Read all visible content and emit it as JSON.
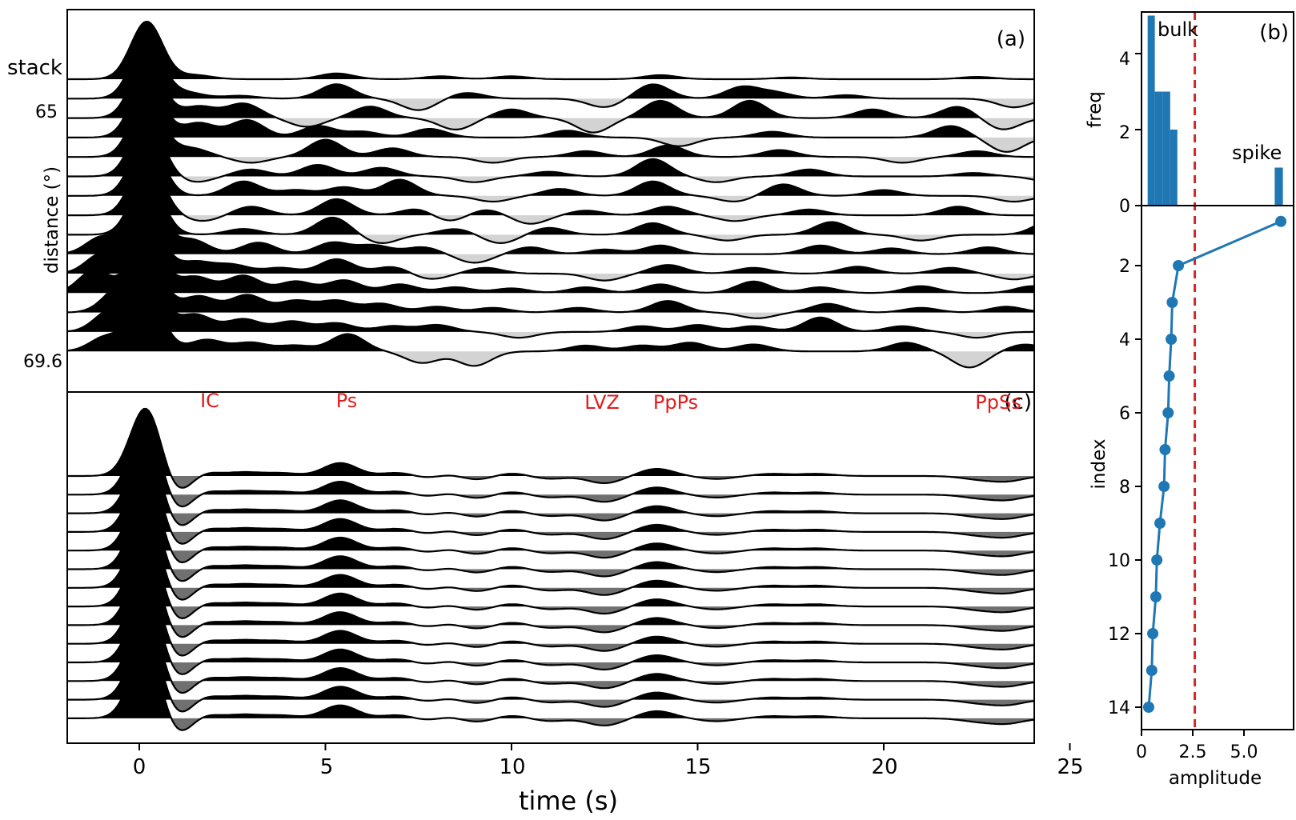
{
  "figure": {
    "colors": {
      "positive_fill": "#000000",
      "negative_fill_a": "#d3d3d3",
      "negative_fill_c": "#707070",
      "trace_line": "#000000",
      "bar": "#1f77b4",
      "marker": "#1f77b4",
      "threshold": "#d62728",
      "phase_label": "#e41a1c"
    }
  },
  "chart_data": [
    {
      "panel": "(a)",
      "type": "line",
      "xlabel": "time (s)",
      "ylabel": "distance (°)",
      "xlim": [
        -2,
        25
      ],
      "x_ticks": [
        0,
        5,
        10,
        15,
        20,
        25
      ],
      "trace_labels": [
        "stack",
        "65",
        "69.6"
      ],
      "trace_count": 15,
      "fill": "positive black, negative light gray",
      "series": [
        {
          "trace": 0,
          "peaks": [
            [
              0.2,
              1.0
            ],
            [
              1.5,
              0.07
            ],
            [
              5.3,
              0.1
            ],
            [
              8.1,
              0.05
            ],
            [
              10,
              0.05
            ],
            [
              14,
              0.07
            ],
            [
              17.5,
              0.03
            ],
            [
              22.5,
              0.04
            ]
          ]
        },
        {
          "trace": 1,
          "peaks": [
            [
              0.2,
              1.0
            ],
            [
              1.3,
              0.1
            ],
            [
              2.7,
              0.05
            ],
            [
              5.3,
              0.25
            ],
            [
              7.5,
              -0.2
            ],
            [
              8.8,
              0.1
            ],
            [
              12.5,
              -0.15
            ],
            [
              13.8,
              0.25
            ],
            [
              16.2,
              0.2
            ],
            [
              17.1,
              0.1
            ],
            [
              19,
              0.06
            ],
            [
              23.5,
              -0.15
            ]
          ]
        },
        {
          "trace": 2,
          "peaks": [
            [
              0.2,
              1.0
            ],
            [
              1.6,
              0.2
            ],
            [
              2.8,
              0.25
            ],
            [
              4.5,
              -0.15
            ],
            [
              6.2,
              0.2
            ],
            [
              8.5,
              -0.2
            ],
            [
              10,
              0.15
            ],
            [
              12.2,
              -0.25
            ],
            [
              14,
              0.3
            ],
            [
              16.4,
              0.3
            ],
            [
              19.7,
              0.15
            ],
            [
              22,
              0.2
            ],
            [
              23.2,
              -0.2
            ]
          ]
        },
        {
          "trace": 3,
          "peaks": [
            [
              0.2,
              1.0
            ],
            [
              1.6,
              0.25
            ],
            [
              2.9,
              0.3
            ],
            [
              4.8,
              0.2
            ],
            [
              6,
              0.1
            ],
            [
              7.8,
              0.15
            ],
            [
              11.5,
              0.12
            ],
            [
              14.5,
              -0.15
            ],
            [
              17,
              0.1
            ],
            [
              21.8,
              0.2
            ],
            [
              23.3,
              -0.25
            ]
          ]
        },
        {
          "trace": 4,
          "peaks": [
            [
              0.2,
              1.0
            ],
            [
              1.4,
              0.15
            ],
            [
              3,
              -0.1
            ],
            [
              5,
              0.3
            ],
            [
              6.8,
              0.15
            ],
            [
              9.5,
              -0.1
            ],
            [
              12,
              0.1
            ],
            [
              14.2,
              0.2
            ],
            [
              17.2,
              0.12
            ],
            [
              20.5,
              -0.1
            ],
            [
              22.5,
              0.1
            ]
          ]
        },
        {
          "trace": 5,
          "peaks": [
            [
              0.2,
              1.0
            ],
            [
              1.5,
              -0.1
            ],
            [
              3,
              0.12
            ],
            [
              4.8,
              0.2
            ],
            [
              6.5,
              0.15
            ],
            [
              9,
              -0.1
            ],
            [
              11,
              0.08
            ],
            [
              13.8,
              0.3
            ],
            [
              15.5,
              -0.1
            ],
            [
              18,
              0.12
            ],
            [
              22.4,
              0.06
            ],
            [
              24.5,
              -0.1
            ]
          ]
        },
        {
          "trace": 6,
          "peaks": [
            [
              0.2,
              1.0
            ],
            [
              2.8,
              0.25
            ],
            [
              4.2,
              0.1
            ],
            [
              5.5,
              0.15
            ],
            [
              7,
              0.28
            ],
            [
              9.5,
              -0.1
            ],
            [
              11.3,
              0.12
            ],
            [
              13.8,
              0.25
            ],
            [
              16,
              -0.1
            ],
            [
              17.3,
              0.2
            ],
            [
              20,
              0.1
            ],
            [
              23.5,
              -0.1
            ]
          ]
        },
        {
          "trace": 7,
          "peaks": [
            [
              0.2,
              1.0
            ],
            [
              1.7,
              -0.1
            ],
            [
              3,
              0.15
            ],
            [
              5.3,
              0.28
            ],
            [
              7.5,
              0.12
            ],
            [
              8.3,
              -0.12
            ],
            [
              9.3,
              0.1
            ],
            [
              10.5,
              -0.15
            ],
            [
              12,
              0.08
            ],
            [
              14.2,
              0.15
            ],
            [
              16,
              -0.1
            ],
            [
              18,
              0.1
            ],
            [
              22,
              0.15
            ]
          ]
        },
        {
          "trace": 8,
          "peaks": [
            [
              0.2,
              1.0
            ],
            [
              2.8,
              0.1
            ],
            [
              5.2,
              0.3
            ],
            [
              6.5,
              -0.15
            ],
            [
              8.5,
              0.1
            ],
            [
              9.7,
              -0.15
            ],
            [
              11,
              0.12
            ],
            [
              13.8,
              0.2
            ],
            [
              15.8,
              -0.1
            ],
            [
              18.6,
              0.22
            ],
            [
              21,
              -0.1
            ],
            [
              24.5,
              0.25
            ]
          ]
        },
        {
          "trace": 9,
          "peaks": [
            [
              -1,
              0.3
            ],
            [
              0.2,
              1.0
            ],
            [
              1.4,
              0.25
            ],
            [
              3.2,
              0.2
            ],
            [
              5.2,
              0.2
            ],
            [
              6.3,
              0.15
            ],
            [
              7.6,
              0.12
            ],
            [
              9,
              -0.15
            ],
            [
              10.5,
              0.12
            ],
            [
              12.5,
              0.08
            ],
            [
              14,
              0.15
            ],
            [
              18.3,
              0.15
            ],
            [
              20.2,
              0.1
            ],
            [
              22.8,
              0.12
            ]
          ]
        },
        {
          "trace": 10,
          "peaks": [
            [
              -1,
              0.35
            ],
            [
              0.2,
              1.0
            ],
            [
              1.5,
              0.2
            ],
            [
              2.5,
              0.15
            ],
            [
              3.8,
              0.1
            ],
            [
              5.3,
              0.25
            ],
            [
              6.8,
              0.12
            ],
            [
              7.8,
              -0.1
            ],
            [
              9.3,
              0.1
            ],
            [
              12.5,
              -0.12
            ],
            [
              14.2,
              0.15
            ],
            [
              16.5,
              0.1
            ],
            [
              19.3,
              0.12
            ],
            [
              21.8,
              0.1
            ],
            [
              23.5,
              -0.1
            ]
          ]
        },
        {
          "trace": 11,
          "peaks": [
            [
              -1.2,
              0.4
            ],
            [
              0.2,
              1.0
            ],
            [
              1.5,
              0.28
            ],
            [
              2.8,
              0.3
            ],
            [
              4.2,
              0.2
            ],
            [
              5.5,
              0.22
            ],
            [
              7,
              0.15
            ],
            [
              8.5,
              0.1
            ],
            [
              10,
              0.08
            ],
            [
              12,
              0.1
            ],
            [
              14,
              0.15
            ],
            [
              16.5,
              0.2
            ],
            [
              18.3,
              0.1
            ],
            [
              21,
              0.12
            ],
            [
              24,
              0.12
            ]
          ]
        },
        {
          "trace": 12,
          "peaks": [
            [
              -0.6,
              0.35
            ],
            [
              0.2,
              1.0
            ],
            [
              1.6,
              0.28
            ],
            [
              2.9,
              0.3
            ],
            [
              4.2,
              0.2
            ],
            [
              5.3,
              0.2
            ],
            [
              6.5,
              0.15
            ],
            [
              8,
              0.1
            ],
            [
              9.5,
              0.08
            ],
            [
              11.8,
              0.08
            ],
            [
              14.2,
              0.2
            ],
            [
              16.6,
              -0.1
            ],
            [
              18.5,
              0.15
            ],
            [
              21,
              0.08
            ],
            [
              23.3,
              0.1
            ]
          ]
        },
        {
          "trace": 13,
          "peaks": [
            [
              -0.8,
              0.35
            ],
            [
              0.2,
              1.0
            ],
            [
              1.5,
              0.3
            ],
            [
              2.8,
              0.22
            ],
            [
              4.1,
              0.18
            ],
            [
              5.3,
              0.15
            ],
            [
              6.8,
              0.1
            ],
            [
              8,
              0.12
            ],
            [
              10.2,
              -0.1
            ],
            [
              13.5,
              0.1
            ],
            [
              15,
              0.12
            ],
            [
              16.5,
              0.1
            ],
            [
              18.3,
              0.25
            ],
            [
              20.5,
              0.1
            ],
            [
              22.5,
              -0.1
            ]
          ]
        },
        {
          "trace": 14,
          "peaks": [
            [
              -0.9,
              0.25
            ],
            [
              0.2,
              1.0
            ],
            [
              1.8,
              0.2
            ],
            [
              3,
              0.15
            ],
            [
              4.2,
              0.1
            ],
            [
              5.6,
              0.3
            ],
            [
              7.6,
              -0.2
            ],
            [
              9,
              -0.25
            ],
            [
              12,
              0.1
            ],
            [
              13.5,
              0.1
            ],
            [
              14.8,
              0.15
            ],
            [
              16.5,
              0.12
            ],
            [
              20.6,
              0.15
            ],
            [
              22.3,
              -0.28
            ],
            [
              23.8,
              0.12
            ]
          ]
        }
      ]
    },
    {
      "panel": "(b)",
      "type": "bar",
      "ylabel": "freq",
      "xlabel": "amplitude",
      "ylim": [
        0,
        5
      ],
      "y_ticks": [
        0,
        2,
        4
      ],
      "bars": [
        {
          "x0": 0.3,
          "x1": 0.65,
          "count": 5
        },
        {
          "x0": 0.65,
          "x1": 1.05,
          "count": 3
        },
        {
          "x0": 1.05,
          "x1": 1.4,
          "count": 3
        },
        {
          "x0": 1.4,
          "x1": 1.75,
          "count": 2
        },
        {
          "x0": 6.5,
          "x1": 6.9,
          "count": 1
        }
      ],
      "annotations": [
        "bulk",
        "spike"
      ],
      "threshold": 2.6
    },
    {
      "panel": "(b) lower",
      "type": "line",
      "xlabel": "amplitude",
      "ylabel": "index",
      "xlim": [
        0,
        7.2
      ],
      "ylim": [
        14.7,
        0.3
      ],
      "x_ticks": [
        0,
        2.5,
        5.0
      ],
      "x_tick_labels": [
        "0",
        "2.5",
        "5.0"
      ],
      "y_ticks": [
        2,
        4,
        6,
        8,
        10,
        12,
        14
      ],
      "x": [
        6.8,
        1.8,
        1.5,
        1.45,
        1.35,
        1.3,
        1.15,
        1.1,
        0.9,
        0.75,
        0.7,
        0.55,
        0.5,
        0.35
      ],
      "y": [
        0.8,
        2,
        3,
        4,
        5,
        6,
        7,
        8,
        9,
        10,
        11,
        12,
        13,
        14
      ],
      "threshold": 2.6
    },
    {
      "panel": "(c)",
      "type": "line",
      "xlabel": "time (s)",
      "xlim": [
        -2,
        25
      ],
      "x_ticks": [
        0,
        5,
        10,
        15,
        20,
        25
      ],
      "trace_count": 14,
      "phase_labels": [
        {
          "text": "IC",
          "t": 1.9
        },
        {
          "text": "Ps",
          "t": 5.6
        },
        {
          "text": "LVZ",
          "t": 12.5
        },
        {
          "text": "PpPs",
          "t": 14.4
        },
        {
          "text": "PpSs",
          "t": 23.3
        }
      ],
      "fill": "positive black, negative dark gray",
      "series": [
        {
          "trace": "template",
          "peaks": [
            [
              0.2,
              1.0
            ],
            [
              1.0,
              -0.35
            ],
            [
              1.5,
              0.12
            ],
            [
              2.8,
              0.05
            ],
            [
              3.8,
              0.04
            ],
            [
              5.4,
              0.18
            ],
            [
              7,
              0.05
            ],
            [
              7.8,
              -0.05
            ],
            [
              8.3,
              0.05
            ],
            [
              9,
              -0.06
            ],
            [
              10,
              0.04
            ],
            [
              11,
              -0.04
            ],
            [
              12.5,
              -0.1
            ],
            [
              13.9,
              0.1
            ],
            [
              15.5,
              -0.04
            ],
            [
              17,
              0.03
            ],
            [
              18.2,
              0.03
            ],
            [
              22.5,
              -0.04
            ],
            [
              23.3,
              -0.07
            ]
          ]
        }
      ]
    }
  ]
}
